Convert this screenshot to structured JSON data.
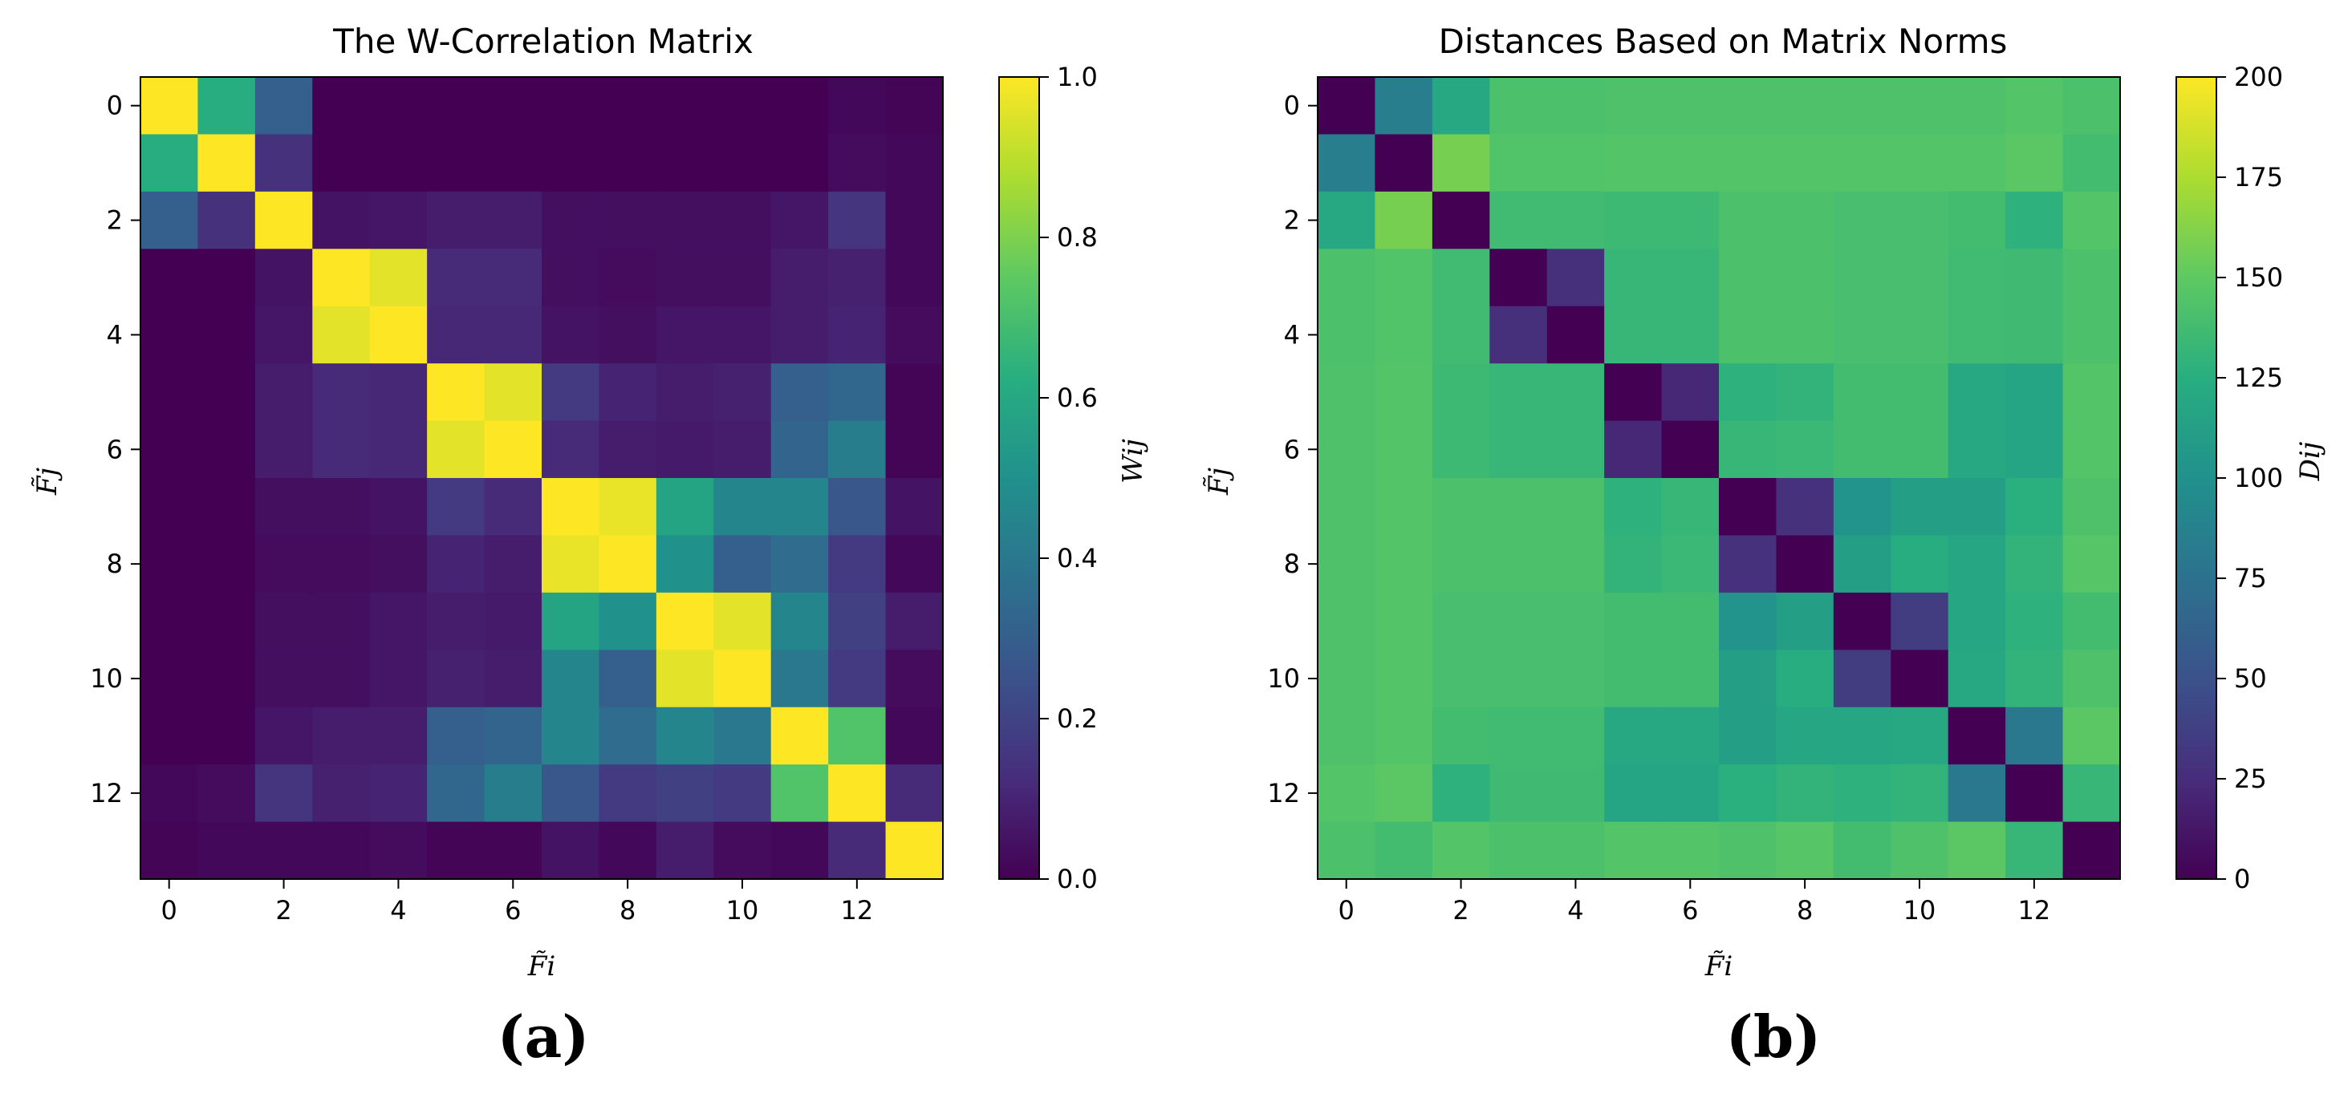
{
  "figure": {
    "panel_a_label": "(a)",
    "panel_b_label": "(b)"
  },
  "chart_data": [
    {
      "type": "heatmap",
      "title": "The W-Correlation Matrix",
      "xlabel": "F̃i",
      "ylabel": "F̃j",
      "colorbar_label": "Wij",
      "colormap": "viridis",
      "vmin": 0.0,
      "vmax": 1.0,
      "xticks": [
        0,
        2,
        4,
        6,
        8,
        10,
        12
      ],
      "yticks": [
        0,
        2,
        4,
        6,
        8,
        10,
        12
      ],
      "colorbar_ticks": [
        "0.0",
        "0.2",
        "0.4",
        "0.6",
        "0.8",
        "1.0"
      ],
      "matrix": [
        [
          1.0,
          0.62,
          0.3,
          0.0,
          0.0,
          0.0,
          0.0,
          0.0,
          0.0,
          0.0,
          0.0,
          0.0,
          0.02,
          0.01
        ],
        [
          0.62,
          1.0,
          0.14,
          0.0,
          0.0,
          0.0,
          0.0,
          0.0,
          0.0,
          0.0,
          0.0,
          0.0,
          0.03,
          0.02
        ],
        [
          0.3,
          0.14,
          1.0,
          0.05,
          0.06,
          0.08,
          0.08,
          0.04,
          0.04,
          0.04,
          0.04,
          0.06,
          0.15,
          0.02
        ],
        [
          0.0,
          0.0,
          0.05,
          1.0,
          0.96,
          0.12,
          0.12,
          0.04,
          0.03,
          0.04,
          0.04,
          0.08,
          0.09,
          0.02
        ],
        [
          0.0,
          0.0,
          0.06,
          0.96,
          1.0,
          0.11,
          0.11,
          0.05,
          0.04,
          0.06,
          0.06,
          0.08,
          0.1,
          0.03
        ],
        [
          0.0,
          0.0,
          0.08,
          0.12,
          0.11,
          1.0,
          0.96,
          0.17,
          0.1,
          0.08,
          0.09,
          0.3,
          0.33,
          0.01
        ],
        [
          0.0,
          0.0,
          0.08,
          0.12,
          0.11,
          0.96,
          1.0,
          0.12,
          0.08,
          0.07,
          0.08,
          0.32,
          0.42,
          0.01
        ],
        [
          0.0,
          0.0,
          0.04,
          0.04,
          0.05,
          0.17,
          0.12,
          1.0,
          0.97,
          0.58,
          0.45,
          0.45,
          0.27,
          0.05
        ],
        [
          0.0,
          0.0,
          0.03,
          0.03,
          0.04,
          0.1,
          0.08,
          0.97,
          1.0,
          0.5,
          0.3,
          0.35,
          0.17,
          0.02
        ],
        [
          0.0,
          0.0,
          0.04,
          0.04,
          0.06,
          0.08,
          0.07,
          0.58,
          0.5,
          1.0,
          0.96,
          0.45,
          0.19,
          0.08
        ],
        [
          0.0,
          0.0,
          0.04,
          0.04,
          0.06,
          0.09,
          0.08,
          0.45,
          0.3,
          0.96,
          1.0,
          0.4,
          0.17,
          0.03
        ],
        [
          0.0,
          0.0,
          0.06,
          0.08,
          0.08,
          0.3,
          0.32,
          0.45,
          0.35,
          0.45,
          0.4,
          1.0,
          0.72,
          0.02
        ],
        [
          0.02,
          0.03,
          0.15,
          0.09,
          0.1,
          0.33,
          0.42,
          0.27,
          0.17,
          0.19,
          0.17,
          0.72,
          1.0,
          0.12
        ],
        [
          0.01,
          0.02,
          0.02,
          0.02,
          0.03,
          0.01,
          0.01,
          0.05,
          0.02,
          0.08,
          0.03,
          0.02,
          0.12,
          1.0
        ]
      ]
    },
    {
      "type": "heatmap",
      "title": "Distances Based on Matrix Norms",
      "xlabel": "F̃i",
      "ylabel": "F̃j",
      "colorbar_label": "Dij",
      "colormap": "viridis",
      "vmin": 0,
      "vmax": 200,
      "xticks": [
        0,
        2,
        4,
        6,
        8,
        10,
        12
      ],
      "yticks": [
        0,
        2,
        4,
        6,
        8,
        10,
        12
      ],
      "colorbar_ticks": [
        "0",
        "25",
        "50",
        "75",
        "100",
        "125",
        "150",
        "175",
        "200"
      ],
      "matrix": [
        [
          0,
          85,
          120,
          142,
          142,
          143,
          143,
          143,
          143,
          143,
          143,
          143,
          145,
          142
        ],
        [
          85,
          0,
          158,
          144,
          144,
          145,
          145,
          145,
          145,
          145,
          145,
          145,
          148,
          138
        ],
        [
          120,
          158,
          0,
          137,
          137,
          135,
          135,
          142,
          142,
          140,
          140,
          138,
          128,
          145
        ],
        [
          142,
          144,
          137,
          0,
          27,
          132,
          132,
          142,
          142,
          140,
          140,
          137,
          136,
          142
        ],
        [
          142,
          144,
          137,
          27,
          0,
          132,
          132,
          142,
          142,
          140,
          140,
          137,
          136,
          142
        ],
        [
          143,
          145,
          135,
          132,
          132,
          0,
          22,
          128,
          130,
          138,
          138,
          120,
          117,
          145
        ],
        [
          143,
          145,
          135,
          132,
          132,
          22,
          0,
          132,
          134,
          138,
          138,
          120,
          117,
          145
        ],
        [
          143,
          145,
          142,
          142,
          142,
          128,
          132,
          0,
          28,
          103,
          112,
          112,
          126,
          143
        ],
        [
          143,
          145,
          142,
          142,
          142,
          130,
          134,
          28,
          0,
          112,
          124,
          118,
          130,
          146
        ],
        [
          143,
          145,
          140,
          140,
          140,
          138,
          138,
          103,
          112,
          0,
          35,
          118,
          128,
          138
        ],
        [
          143,
          145,
          140,
          140,
          140,
          138,
          138,
          112,
          124,
          35,
          0,
          120,
          130,
          143
        ],
        [
          143,
          145,
          138,
          137,
          137,
          120,
          120,
          112,
          118,
          118,
          120,
          0,
          80,
          148
        ],
        [
          145,
          148,
          128,
          136,
          136,
          117,
          117,
          126,
          130,
          128,
          130,
          80,
          0,
          132
        ],
        [
          142,
          138,
          145,
          142,
          142,
          145,
          145,
          143,
          146,
          138,
          143,
          148,
          132,
          0
        ]
      ]
    }
  ]
}
